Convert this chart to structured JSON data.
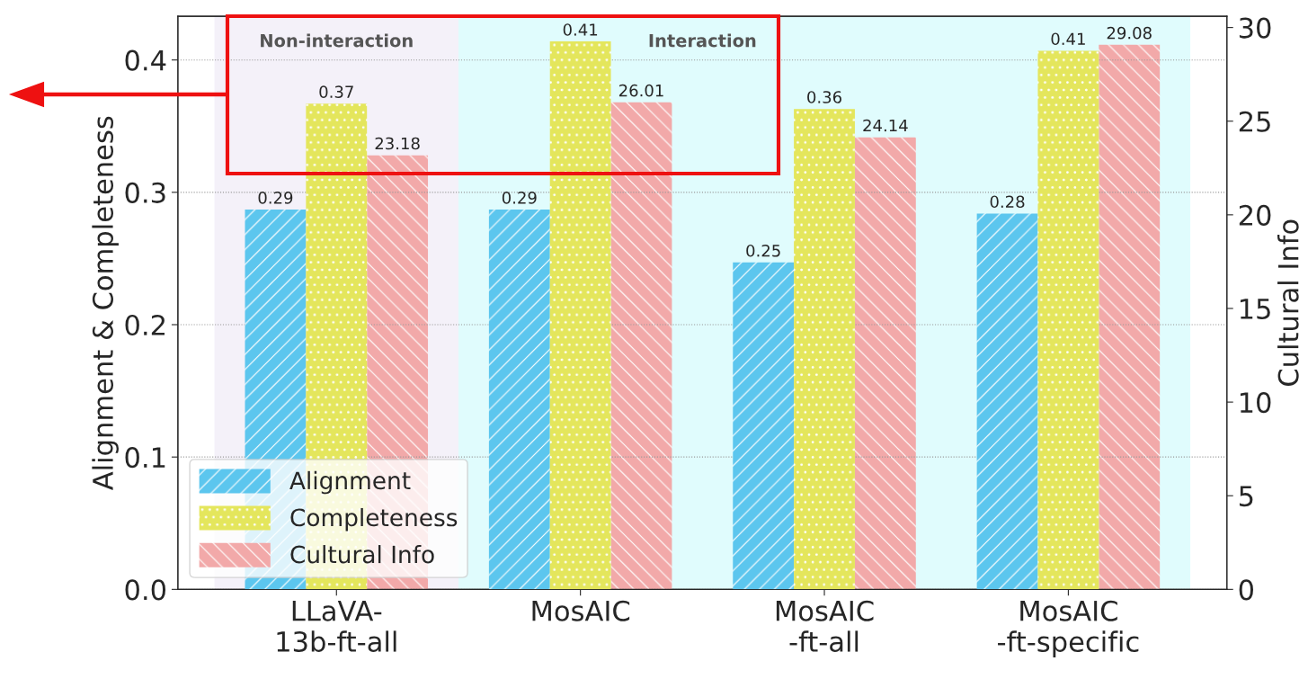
{
  "chart_data": {
    "type": "bar",
    "categories": [
      "LLaVA-\n13b-ft-all",
      "MosAIC",
      "MosAIC\n-ft-all",
      "MosAIC\n-ft-specific"
    ],
    "series": [
      {
        "name": "Alignment",
        "color": "#5cc6ee",
        "values": [
          0.287,
          0.287,
          0.247,
          0.284
        ],
        "value_labels": [
          "0.29",
          "0.29",
          "0.25",
          "0.28"
        ]
      },
      {
        "name": "Completeness",
        "color": "#e4e65c",
        "values": [
          0.367,
          0.414,
          0.363,
          0.407
        ],
        "value_labels": [
          "0.37",
          "0.41",
          "0.36",
          "0.41"
        ]
      },
      {
        "name": "Cultural Info",
        "color": "#f2a9a9",
        "axis": "y2",
        "values": [
          23.18,
          26.01,
          24.14,
          29.08
        ],
        "value_labels": [
          "23.18",
          "26.01",
          "24.14",
          "29.08"
        ]
      }
    ],
    "ylabel": "Alignment & Completeness",
    "y2label": "Cultural Info",
    "ylim": [
      0,
      0.433
    ],
    "yticks": [
      {
        "value": 0,
        "label": "0.0"
      },
      0.1,
      0.2,
      0.3,
      0.4
    ],
    "y2lim": [
      0,
      30.6
    ],
    "y2ticks": [
      0,
      5,
      10,
      15,
      20,
      25,
      30
    ],
    "bands": [
      {
        "axis": "x",
        "from": "LLaVA-\n13b-ft-all",
        "to": "LLaVA-\n13b-ft-all",
        "label": "Non-interaction",
        "color": "#f4f1f9"
      },
      {
        "axis": "x",
        "from": "MosAIC",
        "to": "MosAIC\n-ft-specific",
        "label": "Interaction",
        "color": "#e0fcfd"
      }
    ],
    "grid": "y",
    "legend": "bottom left"
  }
}
